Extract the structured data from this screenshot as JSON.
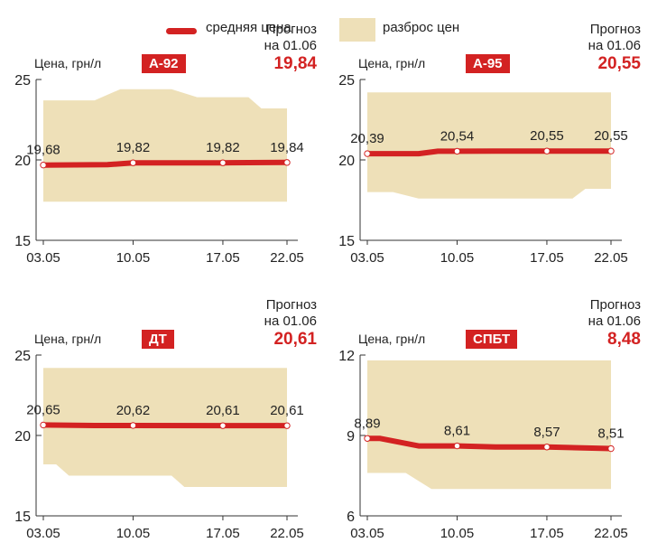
{
  "legend": {
    "avg_label": "средняя цена",
    "range_label": "разброс цен"
  },
  "colors": {
    "line": "#d32222",
    "band": "#eee0b8",
    "badge": "#d32222",
    "forecast_value": "#d32222"
  },
  "chart_data": [
    {
      "type": "area",
      "badge": "А-92",
      "ylabel": "Цена, грн/л",
      "forecast_title_1": "Прогноз",
      "forecast_title_2": "на 01.06",
      "forecast_value": "19,84",
      "ylim": [
        15,
        25
      ],
      "yticks": [
        "15",
        "20",
        "25"
      ],
      "xticks": [
        "03.05",
        "10.05",
        "17.05",
        "22.05"
      ],
      "avg_series": [
        [
          0,
          19.68
        ],
        [
          5,
          19.7
        ],
        [
          7,
          19.82
        ],
        [
          10,
          19.82
        ],
        [
          14,
          19.82
        ],
        [
          19,
          19.84
        ]
      ],
      "band_upper": [
        [
          0,
          23.7
        ],
        [
          4,
          23.7
        ],
        [
          6,
          24.4
        ],
        [
          10,
          24.4
        ],
        [
          12,
          23.9
        ],
        [
          16,
          23.9
        ],
        [
          17,
          23.2
        ],
        [
          19,
          23.2
        ]
      ],
      "band_lower": [
        [
          0,
          17.4
        ],
        [
          19,
          17.4
        ]
      ],
      "labels": [
        {
          "x": 0,
          "v": 19.68,
          "text": "19,68"
        },
        {
          "x": 7,
          "v": 19.82,
          "text": "19,82"
        },
        {
          "x": 14,
          "v": 19.82,
          "text": "19,82"
        },
        {
          "x": 19,
          "v": 19.84,
          "text": "19,84"
        }
      ]
    },
    {
      "type": "area",
      "badge": "А-95",
      "ylabel": "Цена, грн/л",
      "forecast_title_1": "Прогноз",
      "forecast_title_2": "на 01.06",
      "forecast_value": "20,55",
      "ylim": [
        15,
        25
      ],
      "yticks": [
        "15",
        "20",
        "25"
      ],
      "xticks": [
        "03.05",
        "10.05",
        "17.05",
        "22.05"
      ],
      "avg_series": [
        [
          0,
          20.39
        ],
        [
          4,
          20.39
        ],
        [
          5.5,
          20.54
        ],
        [
          7,
          20.54
        ],
        [
          10,
          20.55
        ],
        [
          19,
          20.55
        ]
      ],
      "band_upper": [
        [
          0,
          24.2
        ],
        [
          19,
          24.2
        ]
      ],
      "band_lower": [
        [
          0,
          18.0
        ],
        [
          2,
          18.0
        ],
        [
          4,
          17.6
        ],
        [
          16,
          17.6
        ],
        [
          17,
          18.2
        ],
        [
          19,
          18.2
        ]
      ],
      "labels": [
        {
          "x": 0,
          "v": 20.39,
          "text": "20,39"
        },
        {
          "x": 7,
          "v": 20.54,
          "text": "20,54"
        },
        {
          "x": 14,
          "v": 20.55,
          "text": "20,55"
        },
        {
          "x": 19,
          "v": 20.55,
          "text": "20,55"
        }
      ]
    },
    {
      "type": "area",
      "badge": "ДТ",
      "ylabel": "Цена, грн/л",
      "forecast_title_1": "Прогноз",
      "forecast_title_2": "на 01.06",
      "forecast_value": "20,61",
      "ylim": [
        15,
        25
      ],
      "yticks": [
        "15",
        "20",
        "25"
      ],
      "xticks": [
        "03.05",
        "10.05",
        "17.05",
        "22.05"
      ],
      "avg_series": [
        [
          0,
          20.65
        ],
        [
          4,
          20.62
        ],
        [
          7,
          20.62
        ],
        [
          14,
          20.61
        ],
        [
          19,
          20.61
        ]
      ],
      "band_upper": [
        [
          0,
          24.2
        ],
        [
          19,
          24.2
        ]
      ],
      "band_lower": [
        [
          0,
          18.2
        ],
        [
          1,
          18.2
        ],
        [
          2,
          17.5
        ],
        [
          10,
          17.5
        ],
        [
          11,
          16.8
        ],
        [
          19,
          16.8
        ]
      ],
      "labels": [
        {
          "x": 0,
          "v": 20.65,
          "text": "20,65"
        },
        {
          "x": 7,
          "v": 20.62,
          "text": "20,62"
        },
        {
          "x": 14,
          "v": 20.61,
          "text": "20,61"
        },
        {
          "x": 19,
          "v": 20.61,
          "text": "20,61"
        }
      ]
    },
    {
      "type": "area",
      "badge": "СПБТ",
      "ylabel": "Цена, грн/л",
      "forecast_title_1": "Прогноз",
      "forecast_title_2": "на 01.06",
      "forecast_value": "8,48",
      "ylim": [
        6,
        12
      ],
      "yticks": [
        "6",
        "9",
        "12"
      ],
      "xticks": [
        "03.05",
        "10.05",
        "17.05",
        "22.05"
      ],
      "avg_series": [
        [
          0,
          8.89
        ],
        [
          1,
          8.89
        ],
        [
          4,
          8.61
        ],
        [
          7,
          8.61
        ],
        [
          10,
          8.57
        ],
        [
          14,
          8.57
        ],
        [
          19,
          8.51
        ]
      ],
      "band_upper": [
        [
          0,
          11.8
        ],
        [
          19,
          11.8
        ]
      ],
      "band_lower": [
        [
          0,
          7.6
        ],
        [
          3,
          7.6
        ],
        [
          4,
          7.3
        ],
        [
          5,
          7.0
        ],
        [
          19,
          7.0
        ]
      ],
      "labels": [
        {
          "x": 0,
          "v": 8.89,
          "text": "8,89"
        },
        {
          "x": 7,
          "v": 8.61,
          "text": "8,61"
        },
        {
          "x": 14,
          "v": 8.57,
          "text": "8,57"
        },
        {
          "x": 19,
          "v": 8.51,
          "text": "8,51"
        }
      ]
    }
  ]
}
